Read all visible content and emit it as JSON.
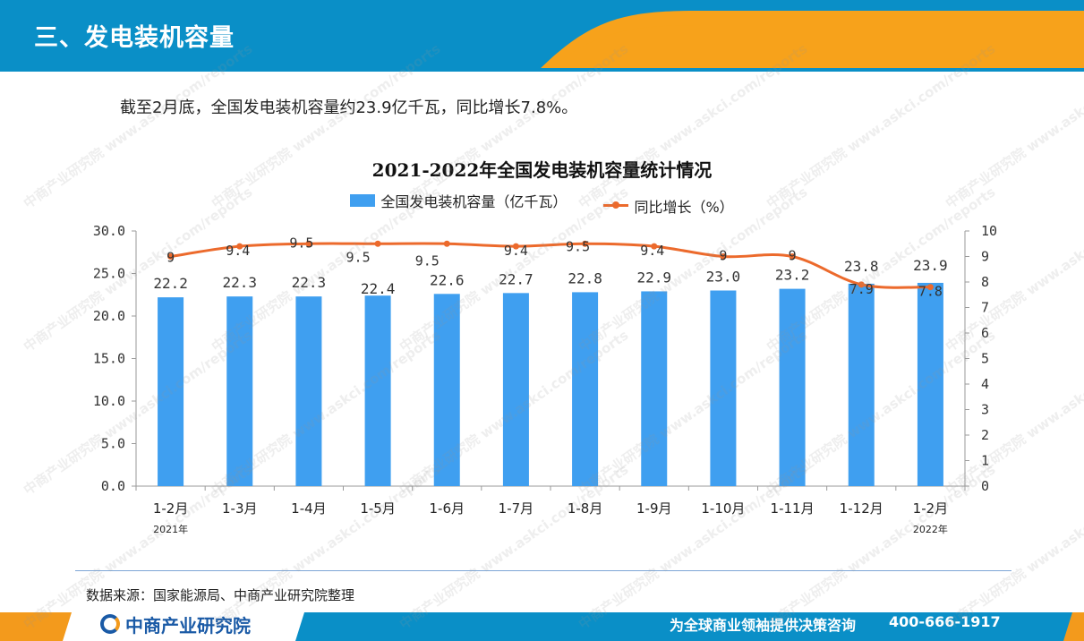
{
  "header": {
    "title": "三、发电装机容量"
  },
  "intro": "截至2月底，全国发电装机容量约23.9亿千瓦，同比增长7.8%。",
  "colors": {
    "header_blue": "#0a8fc7",
    "header_orange": "#f7a21b",
    "bar": "#3f9ff0",
    "line": "#ec6a2c",
    "footer_blue": "#0a8fc7",
    "footer_orange": "#f39a1c"
  },
  "chart_data": {
    "type": "bar+line",
    "title": "2021-2022年全国发电装机容量统计情况",
    "categories": [
      "1-2月",
      "1-3月",
      "1-4月",
      "1-5月",
      "1-6月",
      "1-7月",
      "1-8月",
      "1-9月",
      "1-10月",
      "1-11月",
      "1-12月",
      "1-2月"
    ],
    "year_labels": [
      {
        "index": 0,
        "text": "2021年"
      },
      {
        "index": 11,
        "text": "2022年"
      }
    ],
    "series": [
      {
        "name": "全国发电装机容量（亿千瓦）",
        "type": "bar",
        "axis": "left",
        "values": [
          22.2,
          22.3,
          22.3,
          22.4,
          22.6,
          22.7,
          22.8,
          22.9,
          23.0,
          23.2,
          23.8,
          23.9
        ],
        "labels": [
          "22.2",
          "22.3",
          "22.3",
          "22.4",
          "22.6",
          "22.7",
          "22.8",
          "22.9",
          "23.0",
          "23.2",
          "23.8",
          "23.9"
        ]
      },
      {
        "name": "同比增长（%）",
        "type": "line",
        "axis": "right",
        "values": [
          9,
          9.4,
          9.5,
          9.5,
          9.5,
          9.4,
          9.5,
          9.4,
          9,
          9,
          7.9,
          7.8
        ],
        "labels": [
          "9",
          "9.4",
          "9.5",
          "9.5",
          "9.5",
          "9.4",
          "9.5",
          "9.4",
          "9",
          "9",
          "7.9",
          "7.8"
        ]
      }
    ],
    "y_left": {
      "min": 0,
      "max": 30,
      "ticks": [
        "0.0",
        "5.0",
        "10.0",
        "15.0",
        "20.0",
        "25.0",
        "30.0"
      ]
    },
    "y_right": {
      "min": 0,
      "max": 10,
      "ticks": [
        "0",
        "1",
        "2",
        "3",
        "4",
        "5",
        "6",
        "7",
        "8",
        "9",
        "10"
      ]
    },
    "legend_position": "top",
    "grid": false
  },
  "source": "数据来源：国家能源局、中商产业研究院整理",
  "footer": {
    "logo": "中商产业研究院",
    "slogan": "为全球商业领袖提供决策咨询",
    "phone": "400-666-1917"
  },
  "watermark": {
    "text": "中商产业研究院",
    "sub": "www.askci.com/reports"
  }
}
